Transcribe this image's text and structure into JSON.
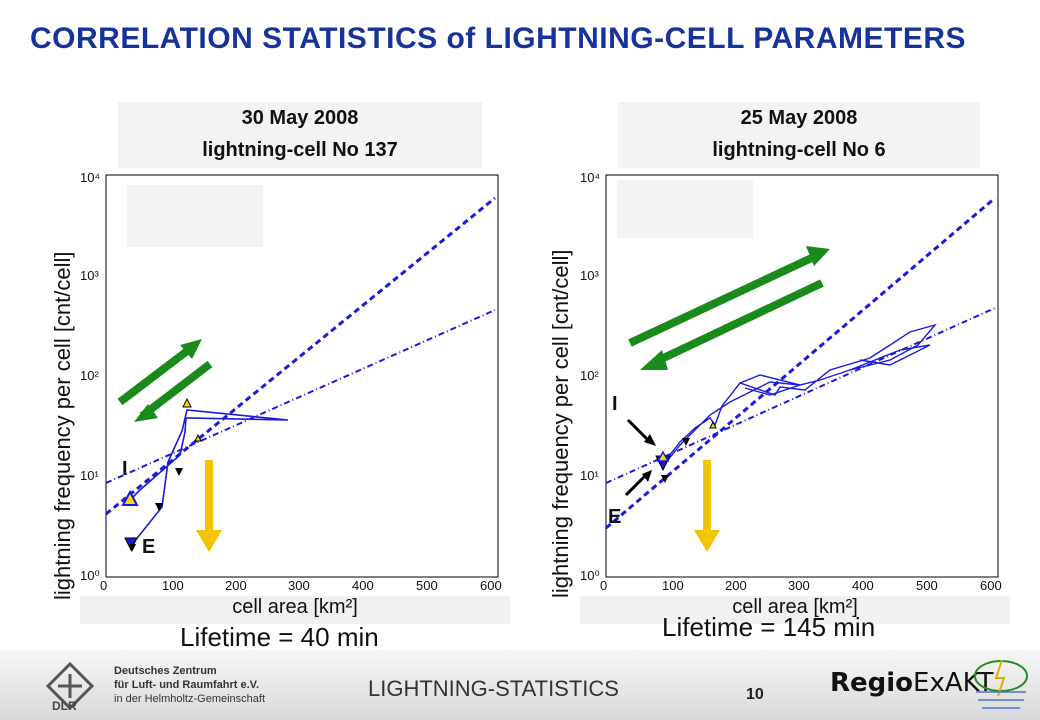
{
  "title": "CORRELATION STATISTICS of LIGHTNING-CELL PARAMETERS",
  "panels": [
    {
      "date": "30 May 2008",
      "cell": "lightning-cell No 137",
      "ylabel": "lightning frequency per cell [cnt/cell]",
      "xlabel": "cell area [km²]",
      "lifetime": "Lifetime = 40 min",
      "label_initial": "I",
      "label_end": "E"
    },
    {
      "date": "25 May 2008",
      "cell": "lightning-cell No 6",
      "ylabel": "lightning frequency per cell [cnt/cell]",
      "xlabel": "cell area [km²]",
      "lifetime": "Lifetime = 145 min",
      "label_initial": "I",
      "label_end": "E"
    }
  ],
  "axes": {
    "x_ticks": [
      "0",
      "100",
      "200",
      "300",
      "400",
      "500",
      "600"
    ],
    "y_ticks": [
      "10⁰",
      "10¹",
      "10²",
      "10³",
      "10⁴"
    ]
  },
  "chart_data": [
    {
      "type": "line",
      "title": "30 May 2008 lightning-cell No 137",
      "xlabel": "cell area [km²]",
      "ylabel": "lightning frequency per cell [cnt/cell]",
      "xlim": [
        0,
        600
      ],
      "ylim": [
        1,
        10000
      ],
      "yscale": "log",
      "series": [
        {
          "x": [
            40,
            90,
            100,
            130,
            145,
            280,
            140,
            140,
            120,
            55,
            35
          ],
          "y": [
            2,
            3,
            8,
            16,
            40,
            35,
            20,
            22,
            10,
            5,
            5.5
          ]
        }
      ],
      "fit_lines": [
        {
          "style": "dashed",
          "x": [
            0,
            590
          ],
          "y": [
            4,
            5500
          ]
        },
        {
          "style": "dash-dot",
          "x": [
            0,
            590
          ],
          "y": [
            8,
            420
          ]
        }
      ]
    },
    {
      "type": "line",
      "title": "25 May 2008 lightning-cell No 6",
      "xlabel": "cell area [km²]",
      "ylabel": "lightning frequency per cell [cnt/cell]",
      "xlim": [
        0,
        600
      ],
      "ylim": [
        1,
        10000
      ],
      "yscale": "log",
      "series": [
        {
          "x": [
            90,
            110,
            130,
            150,
            170,
            200,
            230,
            270,
            300,
            330,
            380,
            420,
            500,
            510,
            460,
            400,
            330,
            280,
            250,
            200,
            160,
            130,
            100,
            90
          ],
          "y": [
            12,
            20,
            30,
            40,
            30,
            75,
            60,
            70,
            55,
            110,
            120,
            95,
            220,
            180,
            150,
            140,
            110,
            120,
            95,
            90,
            50,
            40,
            18,
            14
          ]
        }
      ],
      "fit_lines": [
        {
          "style": "dashed",
          "x": [
            0,
            590
          ],
          "y": [
            3,
            5400
          ]
        },
        {
          "style": "dash-dot",
          "x": [
            0,
            590
          ],
          "y": [
            8,
            440
          ]
        }
      ]
    }
  ],
  "footer": {
    "section_title": "LIGHTNING-STATISTICS",
    "page_number": "10",
    "org_line1": "Deutsches Zentrum",
    "org_line2": "für Luft- und Raumfahrt e.V.",
    "org_line3": "in der Helmholtz-Gemeinschaft",
    "dlr_logo": "DLR",
    "regio_prefix": "Regio",
    "regio_suffix": "ExAKT"
  },
  "colors": {
    "title": "#17339b",
    "series": "#1a1adb",
    "arrow_green": "#1a8a1a",
    "arrow_yellow": "#f5c400"
  }
}
